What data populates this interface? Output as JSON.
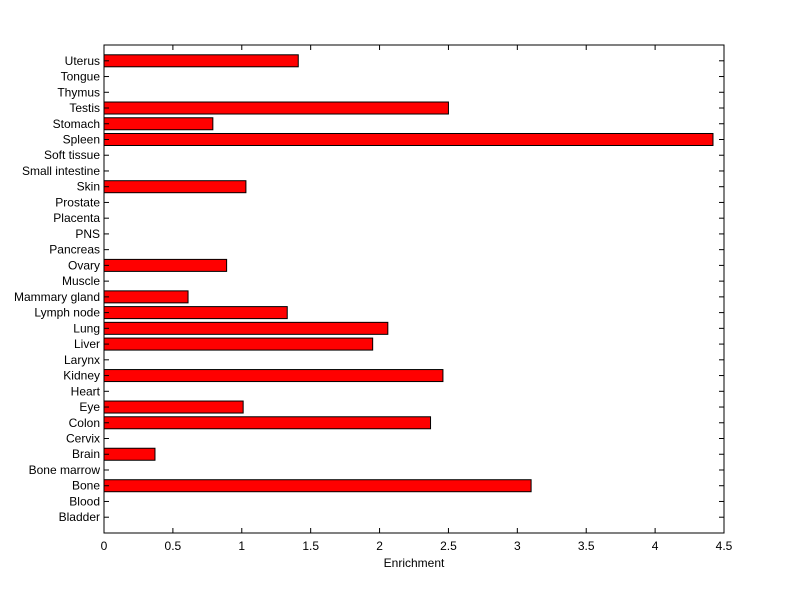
{
  "chart_data": {
    "type": "bar",
    "orientation": "horizontal",
    "categories": [
      "Bladder",
      "Blood",
      "Bone",
      "Bone marrow",
      "Brain",
      "Cervix",
      "Colon",
      "Eye",
      "Heart",
      "Kidney",
      "Larynx",
      "Liver",
      "Lung",
      "Lymph node",
      "Mammary gland",
      "Muscle",
      "Ovary",
      "Pancreas",
      "PNS",
      "Placenta",
      "Prostate",
      "Skin",
      "Small intestine",
      "Soft tissue",
      "Spleen",
      "Stomach",
      "Testis",
      "Thymus",
      "Tongue",
      "Uterus"
    ],
    "values": [
      0,
      0,
      3.1,
      0,
      0.37,
      0,
      2.37,
      1.01,
      0,
      2.46,
      0,
      1.95,
      2.06,
      1.33,
      0.61,
      0,
      0.89,
      0,
      0,
      0,
      0,
      1.03,
      0,
      0,
      4.42,
      0.79,
      2.5,
      0,
      0,
      1.41
    ],
    "xlabel": "Enrichment",
    "ylabel": "",
    "xlim": [
      0,
      4.5
    ],
    "xticks": [
      "0",
      "0.5",
      "1",
      "1.5",
      "2",
      "2.5",
      "3",
      "3.5",
      "4",
      "4.5"
    ],
    "grid": false,
    "bar_color": "#ff0000",
    "bar_edge_color": "#000000"
  }
}
